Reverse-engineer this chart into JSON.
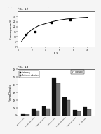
{
  "header_text": "Patent Application Publication    May 3, 2012   Sheet 13 of 13    US 2012/0065891 A1",
  "fig1_label": "FIG. 12",
  "fig2_label": "FIG. 13",
  "curve_x": [
    0.5,
    1,
    1.5,
    2,
    3,
    4,
    5,
    6,
    7,
    8,
    9,
    10
  ],
  "curve_y": [
    5,
    10,
    14,
    17,
    21,
    23,
    25,
    26.5,
    27.5,
    28,
    28.8,
    29.2
  ],
  "scatter_x": [
    1.2,
    2.5,
    4.8,
    7.5
  ],
  "scatter_y": [
    12,
    15,
    24,
    27
  ],
  "curve_xlabel": "FLS",
  "curve_ylabel": "Convergence %",
  "curve_ylim": [
    0,
    35
  ],
  "curve_xlim": [
    0,
    11
  ],
  "curve_yticks": [
    0,
    5,
    10,
    15,
    20,
    25,
    30
  ],
  "curve_xticks": [
    0,
    2,
    4,
    6,
    8,
    10
  ],
  "bar_categories": [
    "MED-BRANCH1",
    "LOWER BRANCH1",
    "LOWER BRANCH2",
    "MED-BRANCH3",
    "LOWER BRANCH3",
    "LOWER BRANCH4",
    "C. 2 BRANCH"
  ],
  "bar_stationary": [
    30,
    90,
    120,
    490,
    240,
    70,
    110
  ],
  "bar_motion": [
    20,
    60,
    90,
    420,
    200,
    50,
    80
  ],
  "bar_ylabel": "Firing Density",
  "bar_ylim": [
    0,
    600
  ],
  "bar_yticks": [
    0,
    100,
    200,
    300,
    400,
    500,
    600
  ],
  "legend_stationary": "Stationary",
  "legend_motion": "Motion or vibration",
  "annotation": "4+ Hotspot",
  "color_stationary": "#111111",
  "color_motion": "#777777",
  "bg_color": "#f5f5f5",
  "plot_bg": "#ffffff"
}
